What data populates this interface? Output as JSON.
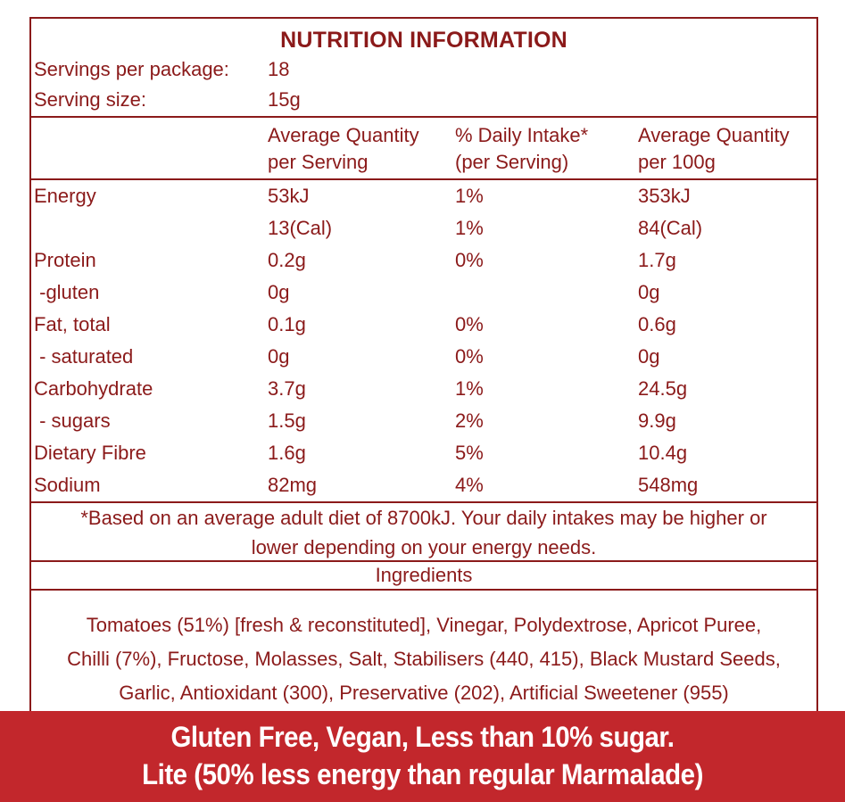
{
  "colors": {
    "text_maroon": "#8B1A1A",
    "border_maroon": "#8B1A1A",
    "banner_red": "#C2272C",
    "banner_text": "#FFFFFF",
    "background": "#FFFFFF"
  },
  "title": "NUTRITION INFORMATION",
  "servings": {
    "per_package_label": "Servings per package:",
    "per_package_value": "18",
    "size_label": "Serving size:",
    "size_value": "15g"
  },
  "columns": {
    "per_serving_line1": "Average Quantity",
    "per_serving_line2": "per Serving",
    "daily_intake_line1": "% Daily Intake*",
    "daily_intake_line2": "(per Serving)",
    "per_100g_line1": "Average Quantity",
    "per_100g_line2": "per 100g"
  },
  "rows": [
    {
      "label": "Energy",
      "per_serving": "53kJ",
      "daily_intake": "1%",
      "per_100g": "353kJ"
    },
    {
      "label": "",
      "per_serving": "13(Cal)",
      "daily_intake": "1%",
      "per_100g": "84(Cal)"
    },
    {
      "label": "Protein",
      "per_serving": "0.2g",
      "daily_intake": "0%",
      "per_100g": "1.7g"
    },
    {
      "label": " -gluten",
      "per_serving": "0g",
      "daily_intake": "",
      "per_100g": "0g"
    },
    {
      "label": "Fat, total",
      "per_serving": "0.1g",
      "daily_intake": "0%",
      "per_100g": "0.6g"
    },
    {
      "label": " - saturated",
      "per_serving": "0g",
      "daily_intake": "0%",
      "per_100g": "0g"
    },
    {
      "label": "Carbohydrate",
      "per_serving": "3.7g",
      "daily_intake": "1%",
      "per_100g": "24.5g"
    },
    {
      "label": " - sugars",
      "per_serving": "1.5g",
      "daily_intake": "2%",
      "per_100g": "9.9g"
    },
    {
      "label": "Dietary Fibre",
      "per_serving": "1.6g",
      "daily_intake": "5%",
      "per_100g": "10.4g"
    },
    {
      "label": "Sodium",
      "per_serving": "82mg",
      "daily_intake": "4%",
      "per_100g": "548mg"
    }
  ],
  "footnote": {
    "line1": "*Based on an average adult diet of 8700kJ. Your daily intakes may be higher or",
    "line2": "lower depending on your energy needs."
  },
  "ingredients": {
    "header": "Ingredients",
    "line1": "Tomatoes (51%) [fresh & reconstituted], Vinegar, Polydextrose, Apricot Puree,",
    "line2": "Chilli (7%), Fructose, Molasses, Salt, Stabilisers (440, 415), Black Mustard Seeds,",
    "line3": "Garlic, Antioxidant (300), Preservative (202), Artificial Sweetener (955)"
  },
  "banner": {
    "line1": "Gluten Free, Vegan, Less than 10% sugar.",
    "line2": "Lite (50% less energy than regular Marmalade)"
  }
}
